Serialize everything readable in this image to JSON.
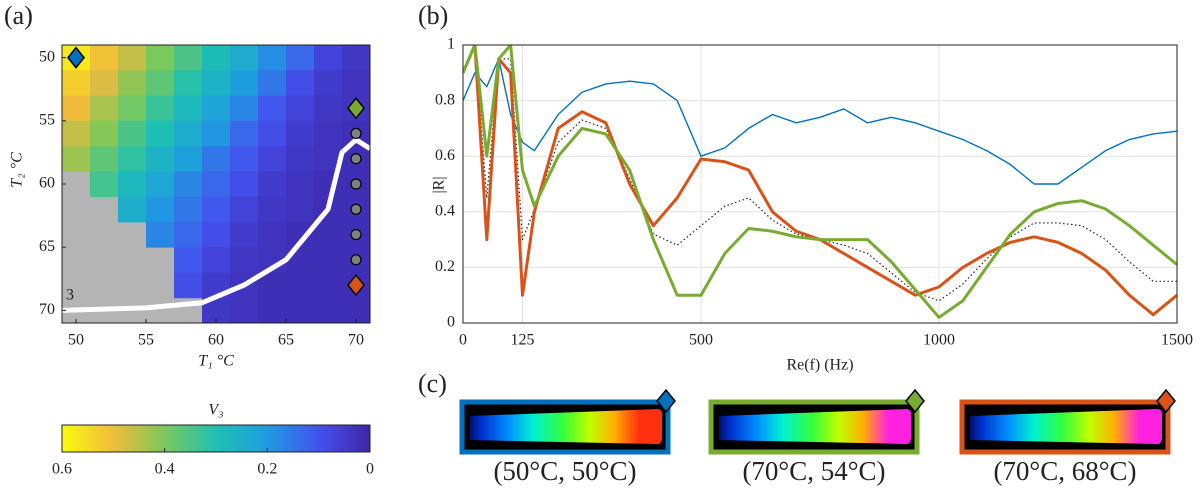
{
  "panel_labels": [
    "(a)",
    "(b)",
    "(c)"
  ],
  "images": [
    {
      "label": "(50°C, 50°C)",
      "color": "#0072bd",
      "hot": "#ff3010"
    },
    {
      "label": "(70°C, 54°C)",
      "color": "#77ac30",
      "hot": "#ff20e0"
    },
    {
      "label": "(70°C, 68°C)",
      "color": "#d95319",
      "hot": "#ff20e0"
    }
  ],
  "chart_data": [
    {
      "type": "heatmap",
      "xlabel": "T₁ °C",
      "ylabel": "T₂ °C",
      "annotation": "3",
      "x": [
        50,
        52,
        54,
        56,
        58,
        60,
        62,
        64,
        66,
        68,
        70
      ],
      "y": [
        50,
        52,
        54,
        56,
        58,
        60,
        62,
        64,
        66,
        68,
        70
      ],
      "values": [
        [
          0.57,
          0.51,
          0.46,
          0.4,
          0.35,
          0.29,
          0.24,
          0.18,
          0.13,
          0.07,
          0.04
        ],
        [
          0.53,
          0.48,
          0.42,
          0.37,
          0.31,
          0.26,
          0.2,
          0.15,
          0.09,
          0.05,
          0.03
        ],
        [
          0.5,
          0.44,
          0.39,
          0.33,
          0.28,
          0.22,
          0.17,
          0.11,
          0.07,
          0.04,
          0.03
        ],
        [
          0.46,
          0.41,
          0.35,
          0.3,
          0.24,
          0.19,
          0.13,
          0.09,
          0.05,
          0.03,
          0.02
        ],
        [
          0.43,
          0.37,
          0.32,
          0.26,
          0.21,
          0.15,
          0.11,
          0.07,
          0.04,
          0.03,
          0.02
        ],
        [
          null,
          0.34,
          0.28,
          0.23,
          0.17,
          0.13,
          0.09,
          0.05,
          0.03,
          0.02,
          0.02
        ],
        [
          null,
          null,
          0.25,
          0.19,
          0.15,
          0.11,
          0.07,
          0.04,
          0.03,
          0.02,
          0.02
        ],
        [
          null,
          null,
          null,
          0.17,
          0.13,
          0.09,
          0.05,
          0.03,
          0.02,
          0.02,
          0.02
        ],
        [
          null,
          null,
          null,
          null,
          0.11,
          0.07,
          0.04,
          0.03,
          0.02,
          0.02,
          0.02
        ],
        [
          null,
          null,
          null,
          null,
          0.09,
          0.05,
          0.03,
          0.02,
          0.02,
          0.02,
          0.02
        ],
        [
          null,
          null,
          null,
          null,
          null,
          0.04,
          0.03,
          0.02,
          0.02,
          0.02,
          0.02
        ]
      ],
      "missing_color": "#b4b4b4",
      "xlim": [
        49,
        71
      ],
      "ylim": [
        49,
        71
      ],
      "y_reversed": true,
      "xticks": [
        50,
        55,
        60,
        65,
        70
      ],
      "yticks": [
        50,
        55,
        60,
        65,
        70
      ],
      "boundary": {
        "color": "#ffffff",
        "x": [
          49,
          55,
          59,
          62,
          65,
          68,
          69,
          70,
          71
        ],
        "y": [
          70,
          69.8,
          69.4,
          68,
          66,
          62,
          57.5,
          56.5,
          57.2
        ]
      },
      "markers": [
        {
          "x": 50,
          "y": 50,
          "shape": "diamond",
          "color": "#0072bd"
        },
        {
          "x": 70,
          "y": 54,
          "shape": "diamond",
          "color": "#77ac30"
        },
        {
          "x": 70,
          "y": 56,
          "shape": "circle",
          "color": "#808080"
        },
        {
          "x": 70,
          "y": 58,
          "shape": "circle",
          "color": "#808080"
        },
        {
          "x": 70,
          "y": 60,
          "shape": "circle",
          "color": "#808080"
        },
        {
          "x": 70,
          "y": 62,
          "shape": "circle",
          "color": "#808080"
        },
        {
          "x": 70,
          "y": 64,
          "shape": "circle",
          "color": "#808080"
        },
        {
          "x": 70,
          "y": 66,
          "shape": "circle",
          "color": "#808080"
        },
        {
          "x": 70,
          "y": 68,
          "shape": "diamond",
          "color": "#d95319"
        }
      ],
      "colorbar": {
        "label": "V₃",
        "lim": [
          0.6,
          0
        ],
        "ticks": [
          0.6,
          0.4,
          0.2,
          0
        ]
      }
    },
    {
      "type": "line",
      "xlabel": "Re(f) (Hz)",
      "ylabel": "|R|",
      "x": [
        0,
        25,
        50,
        75,
        100,
        125,
        150,
        200,
        250,
        300,
        350,
        400,
        450,
        500,
        550,
        600,
        650,
        700,
        750,
        800,
        850,
        900,
        950,
        1000,
        1050,
        1100,
        1150,
        1200,
        1250,
        1300,
        1350,
        1400,
        1450,
        1500
      ],
      "series": [
        {
          "color": "#222222",
          "style": "dotted",
          "values": [
            0.9,
            1,
            0.45,
            0.95,
            0.95,
            0.3,
            0.41,
            0.65,
            0.73,
            0.7,
            0.52,
            0.32,
            0.28,
            0.35,
            0.42,
            0.45,
            0.37,
            0.32,
            0.3,
            0.28,
            0.25,
            0.18,
            0.11,
            0.08,
            0.14,
            0.23,
            0.31,
            0.36,
            0.36,
            0.35,
            0.3,
            0.22,
            0.15,
            0.15
          ]
        },
        {
          "color": "#0072bd",
          "style": "solid",
          "values": [
            0.8,
            0.9,
            0.85,
            0.95,
            0.75,
            0.65,
            0.62,
            0.75,
            0.83,
            0.86,
            0.87,
            0.86,
            0.8,
            0.6,
            0.63,
            0.7,
            0.75,
            0.72,
            0.74,
            0.77,
            0.72,
            0.74,
            0.72,
            0.69,
            0.66,
            0.62,
            0.57,
            0.5,
            0.5,
            0.56,
            0.62,
            0.66,
            0.68,
            0.69
          ]
        },
        {
          "color": "#d95319",
          "style": "bold",
          "values": [
            0.9,
            1,
            0.3,
            0.95,
            0.9,
            0.1,
            0.4,
            0.7,
            0.76,
            0.72,
            0.5,
            0.35,
            0.45,
            0.59,
            0.58,
            0.55,
            0.4,
            0.33,
            0.3,
            0.25,
            0.2,
            0.15,
            0.1,
            0.13,
            0.2,
            0.25,
            0.29,
            0.31,
            0.29,
            0.25,
            0.19,
            0.1,
            0.03,
            0.1
          ]
        },
        {
          "color": "#77ac30",
          "style": "bold",
          "values": [
            0.9,
            1,
            0.6,
            0.95,
            1,
            0.55,
            0.42,
            0.6,
            0.7,
            0.68,
            0.55,
            0.3,
            0.1,
            0.1,
            0.25,
            0.34,
            0.33,
            0.31,
            0.3,
            0.3,
            0.3,
            0.22,
            0.12,
            0.02,
            0.08,
            0.2,
            0.32,
            0.4,
            0.43,
            0.44,
            0.41,
            0.35,
            0.28,
            0.21
          ]
        }
      ],
      "xlim": [
        0,
        1500
      ],
      "ylim": [
        0,
        1
      ],
      "xticks": [
        0,
        125,
        500,
        1000,
        1500
      ],
      "yticks": [
        0,
        0.2,
        0.4,
        0.6,
        0.8,
        1
      ],
      "grid": true
    }
  ]
}
